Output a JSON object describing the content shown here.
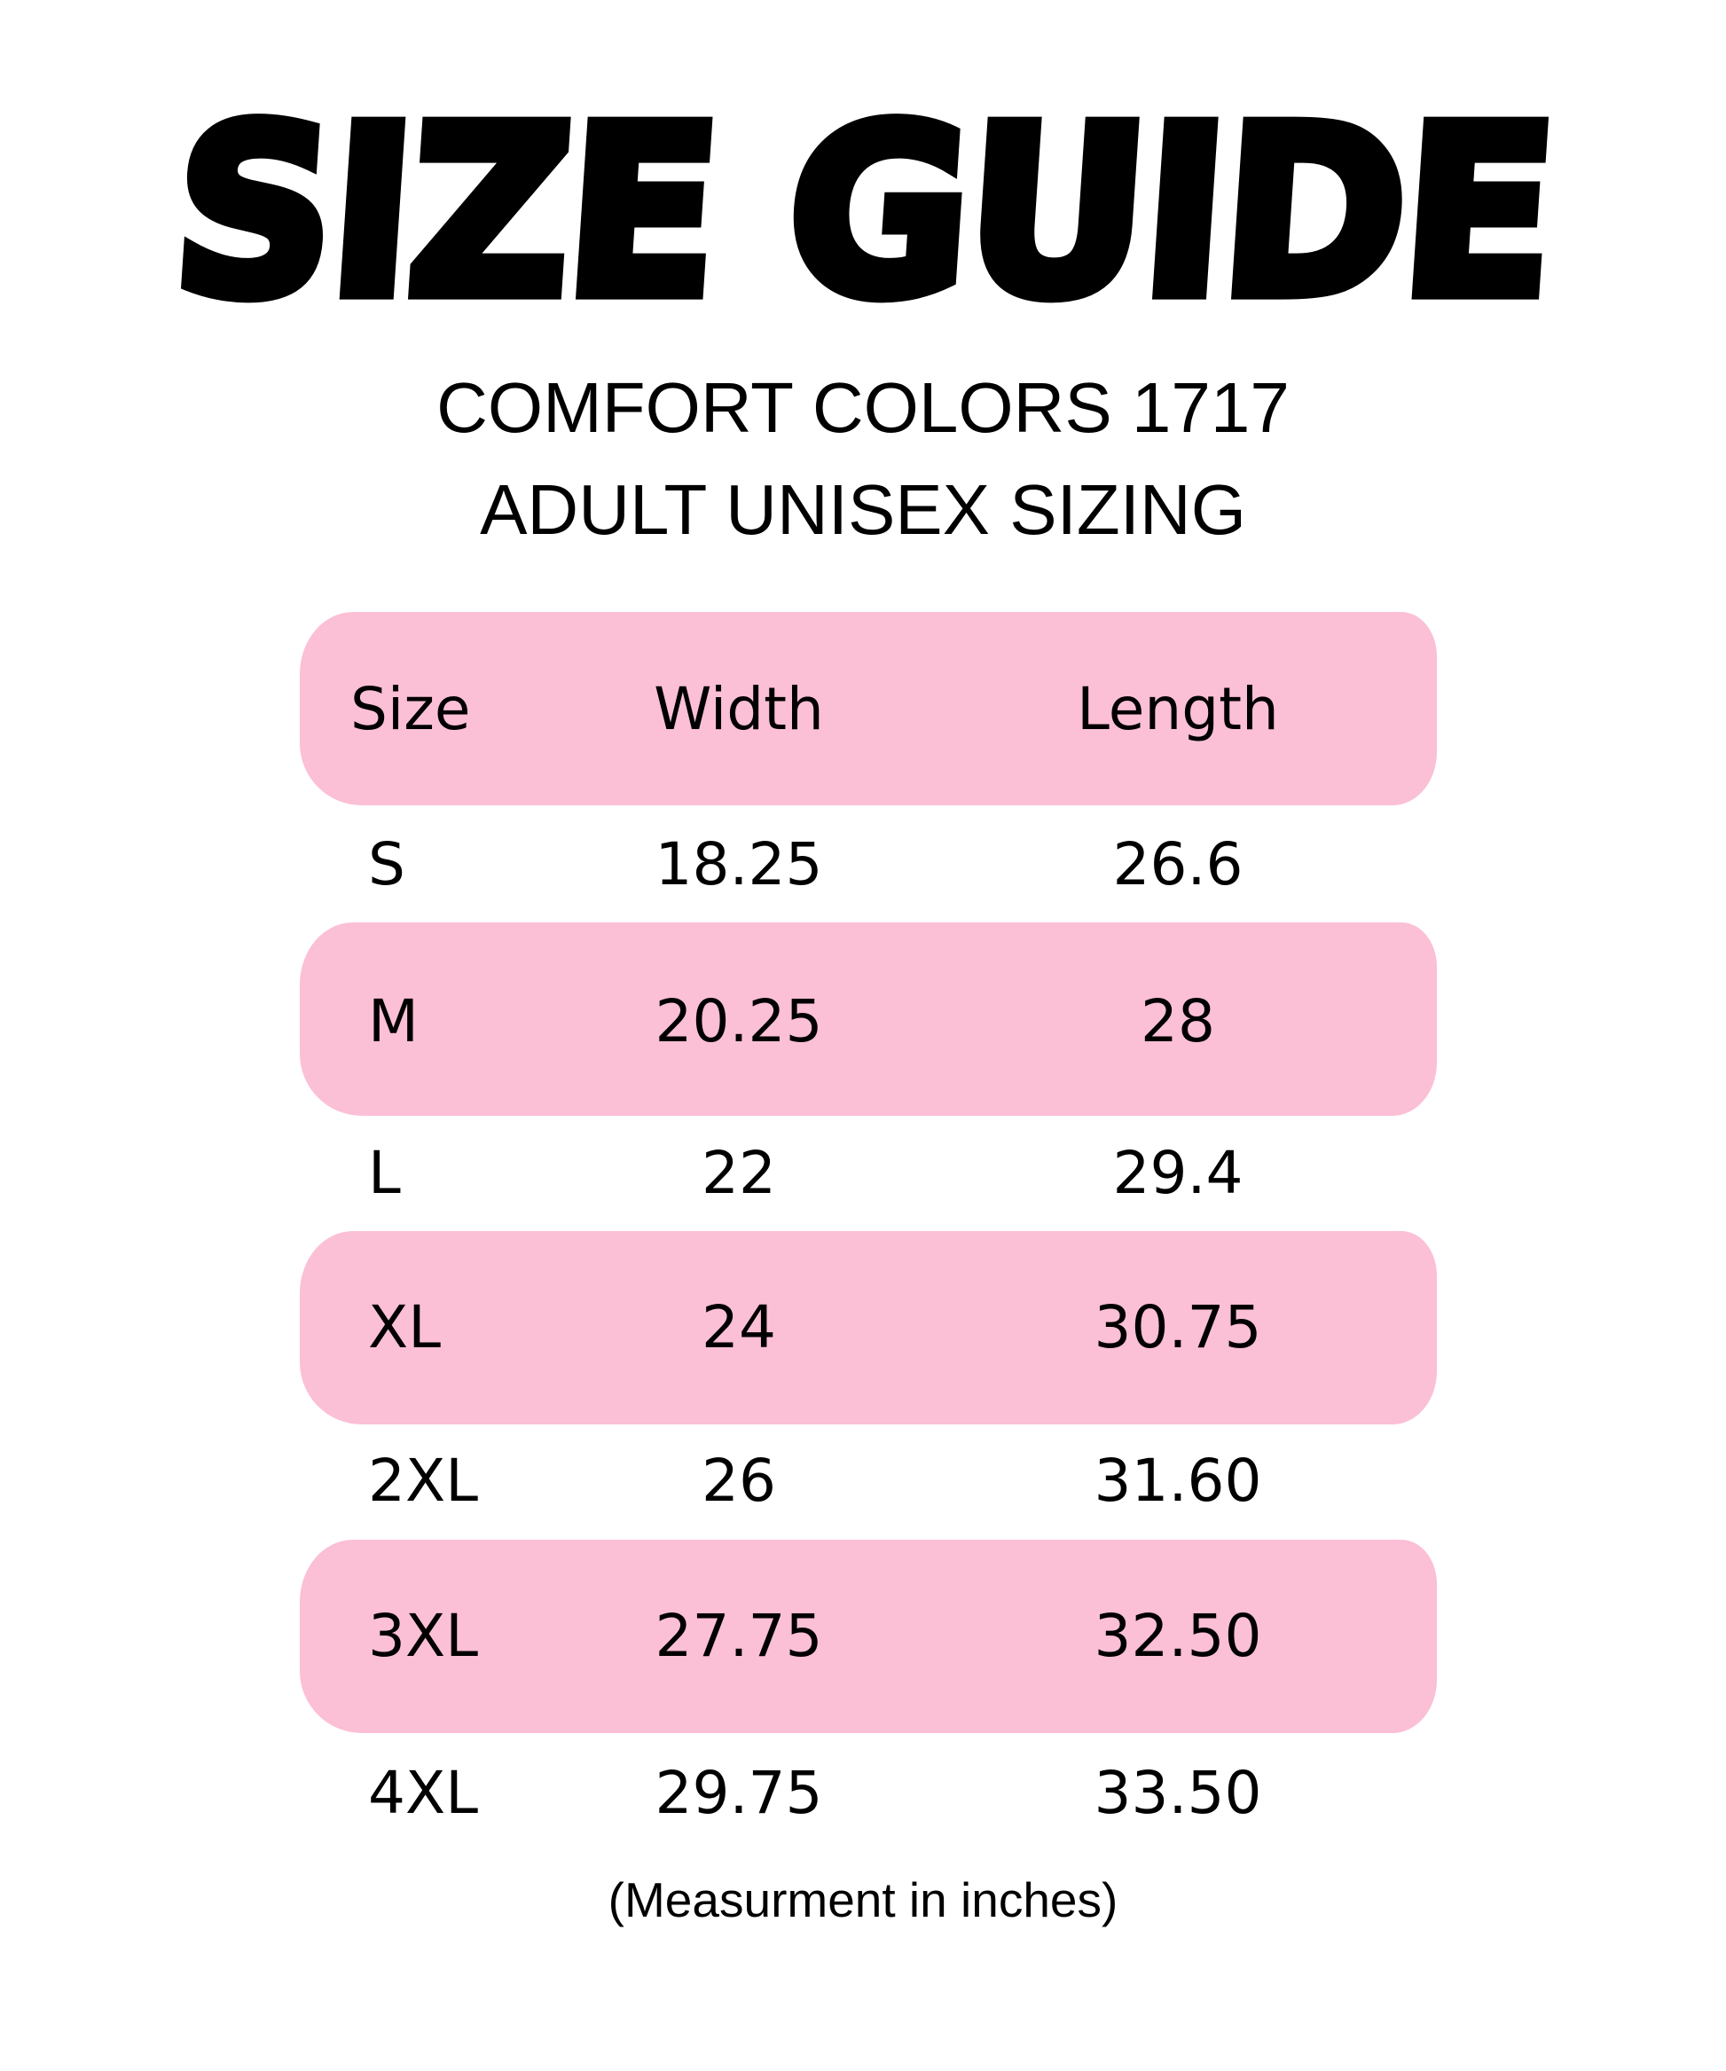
{
  "title": "SIZE GUIDE",
  "subtitle_line1": "COMFORT COLORS 1717",
  "subtitle_line2": "ADULT UNISEX SIZING",
  "colors": {
    "band": "#fbbfd6",
    "text": "#000000"
  },
  "table": {
    "headers": [
      "Size",
      "Width",
      "Length"
    ],
    "rows": [
      [
        "S",
        "18.25",
        "26.6"
      ],
      [
        "M",
        "20.25",
        "28"
      ],
      [
        "L",
        "22",
        "29.4"
      ],
      [
        "XL",
        "24",
        "30.75"
      ],
      [
        "2XL",
        "26",
        "31.60"
      ],
      [
        "3XL",
        "27.75",
        "32.50"
      ],
      [
        "4XL",
        "29.75",
        "33.50"
      ]
    ]
  },
  "footnote": "(Measurment in inches)"
}
